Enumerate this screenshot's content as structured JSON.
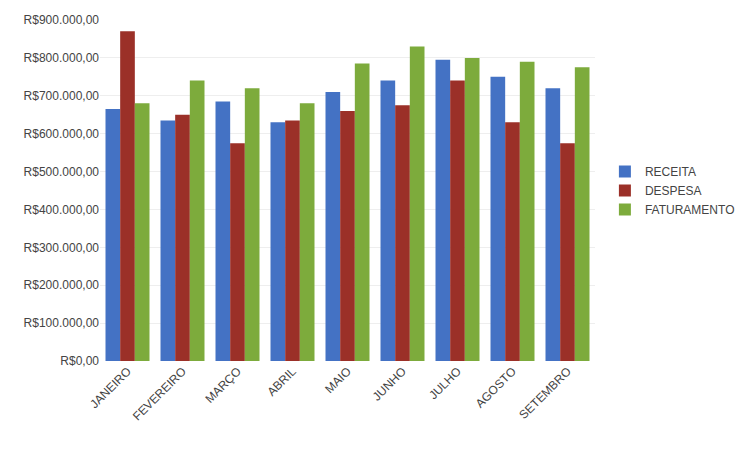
{
  "chart_data": {
    "type": "bar",
    "categories": [
      "JANEIRO",
      "FEVEREIRO",
      "MARÇO",
      "ABRIL",
      "MAIO",
      "JUNHO",
      "JULHO",
      "AGOSTO",
      "SETEMBRO"
    ],
    "series": [
      {
        "name": "RECEITA",
        "color": "#4472c4",
        "values": [
          665000,
          635000,
          685000,
          630000,
          710000,
          740000,
          795000,
          750000,
          720000
        ]
      },
      {
        "name": "DESPESA",
        "color": "#9b3028",
        "values": [
          870000,
          650000,
          575000,
          635000,
          660000,
          675000,
          740000,
          630000,
          575000
        ]
      },
      {
        "name": "FATURAMENTO",
        "color": "#7dab3c",
        "values": [
          680000,
          740000,
          720000,
          680000,
          785000,
          830000,
          800000,
          790000,
          775000
        ]
      }
    ],
    "ylim": [
      0,
      900000
    ],
    "yticks": [
      {
        "value": 0,
        "label": "R$0,00"
      },
      {
        "value": 100000,
        "label": "R$100.000,00"
      },
      {
        "value": 200000,
        "label": "R$200.000,00"
      },
      {
        "value": 300000,
        "label": "R$300.000,00"
      },
      {
        "value": 400000,
        "label": "R$400.000,00"
      },
      {
        "value": 500000,
        "label": "R$500.000,00"
      },
      {
        "value": 600000,
        "label": "R$600.000,00"
      },
      {
        "value": 700000,
        "label": "R$700.000,00"
      },
      {
        "value": 800000,
        "label": "R$800.000,00"
      },
      {
        "value": 900000,
        "label": "R$900.000,00"
      }
    ],
    "grid": true,
    "legend": "right"
  }
}
